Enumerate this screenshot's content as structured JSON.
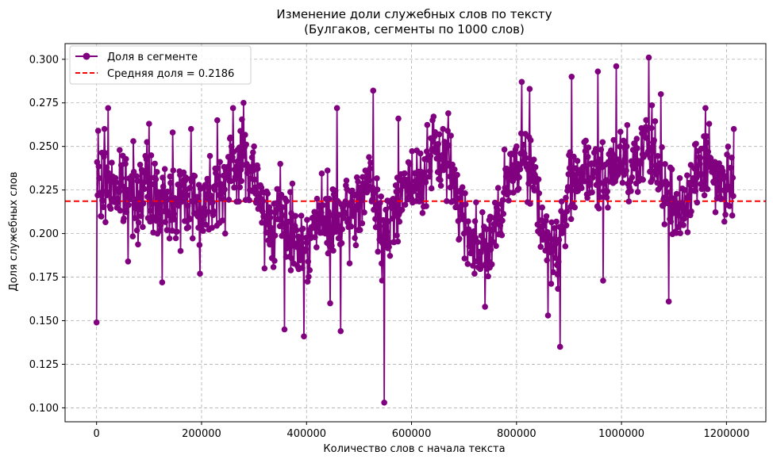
{
  "chart_data": {
    "type": "line",
    "title": "Изменение доли служебных слов по тексту",
    "subtitle": "(Булгаков, сегменты по 1000 слов)",
    "xlabel": "Количество слов с начала текста",
    "ylabel": "Доля служебных слов",
    "xlim": [
      -60000,
      1275000
    ],
    "ylim": [
      0.092,
      0.309
    ],
    "x_ticks": [
      0,
      200000,
      400000,
      600000,
      800000,
      1000000,
      1200000
    ],
    "x_tick_labels": [
      "0",
      "200000",
      "400000",
      "600000",
      "800000",
      "1000000",
      "1200000"
    ],
    "y_ticks": [
      0.1,
      0.125,
      0.15,
      0.175,
      0.2,
      0.225,
      0.25,
      0.275,
      0.3
    ],
    "y_tick_labels": [
      "0.100",
      "0.125",
      "0.150",
      "0.175",
      "0.200",
      "0.225",
      "0.250",
      "0.275",
      "0.300"
    ],
    "grid": true,
    "legend_position": "top-left",
    "segment_size": 1000,
    "series": [
      {
        "name": "Доля в сегменте",
        "color": "#800080",
        "marker": "circle",
        "x_start": 0,
        "x_step": 1000,
        "n_points": 1215,
        "anchors": [
          [
            0,
            0.149
          ],
          [
            1000,
            0.241
          ],
          [
            3000,
            0.259
          ],
          [
            8000,
            0.21
          ],
          [
            15000,
            0.26
          ],
          [
            22000,
            0.272
          ],
          [
            40000,
            0.22
          ],
          [
            55000,
            0.24
          ],
          [
            60000,
            0.184
          ],
          [
            70000,
            0.253
          ],
          [
            85000,
            0.21
          ],
          [
            100000,
            0.263
          ],
          [
            125000,
            0.172
          ],
          [
            145000,
            0.258
          ],
          [
            160000,
            0.19
          ],
          [
            180000,
            0.26
          ],
          [
            197000,
            0.177
          ],
          [
            230000,
            0.265
          ],
          [
            245000,
            0.2
          ],
          [
            260000,
            0.272
          ],
          [
            280000,
            0.275
          ],
          [
            300000,
            0.25
          ],
          [
            320000,
            0.18
          ],
          [
            335000,
            0.2
          ],
          [
            350000,
            0.24
          ],
          [
            358000,
            0.145
          ],
          [
            375000,
            0.21
          ],
          [
            395000,
            0.141
          ],
          [
            420000,
            0.22
          ],
          [
            445000,
            0.16
          ],
          [
            458000,
            0.272
          ],
          [
            465000,
            0.144
          ],
          [
            490000,
            0.21
          ],
          [
            527000,
            0.282
          ],
          [
            548000,
            0.103
          ],
          [
            575000,
            0.266
          ],
          [
            600000,
            0.22
          ],
          [
            640000,
            0.265
          ],
          [
            670000,
            0.269
          ],
          [
            700000,
            0.2
          ],
          [
            720000,
            0.177
          ],
          [
            740000,
            0.158
          ],
          [
            770000,
            0.2
          ],
          [
            800000,
            0.25
          ],
          [
            810000,
            0.287
          ],
          [
            825000,
            0.283
          ],
          [
            845000,
            0.2
          ],
          [
            860000,
            0.153
          ],
          [
            883000,
            0.135
          ],
          [
            905000,
            0.29
          ],
          [
            930000,
            0.23
          ],
          [
            955000,
            0.293
          ],
          [
            965000,
            0.173
          ],
          [
            990000,
            0.296
          ],
          [
            1010000,
            0.25
          ],
          [
            1035000,
            0.24
          ],
          [
            1052000,
            0.301
          ],
          [
            1075000,
            0.28
          ],
          [
            1090000,
            0.161
          ],
          [
            1120000,
            0.225
          ],
          [
            1160000,
            0.272
          ],
          [
            1190000,
            0.22
          ],
          [
            1214000,
            0.26
          ]
        ],
        "noise_amplitude": 0.032,
        "noise_seed": 7
      },
      {
        "name": "Средняя доля = 0.2186",
        "color": "#ff0000",
        "style": "dashed",
        "value": 0.2186
      }
    ]
  }
}
